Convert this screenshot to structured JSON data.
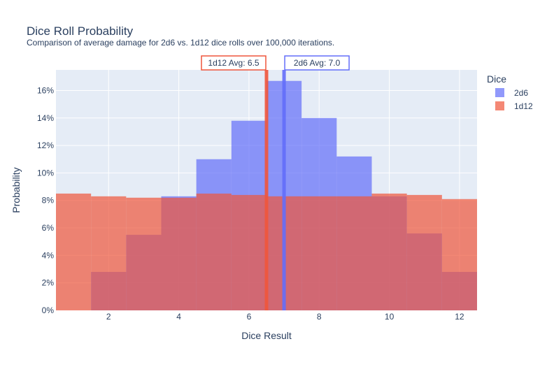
{
  "chart_data": {
    "type": "bar",
    "title": "Dice Roll Probability",
    "subtitle": "Comparison of average damage for 2d6 vs. 1d12 dice rolls over 100,000 iterations.",
    "xlabel": "Dice Result",
    "ylabel": "Probability",
    "xlim": [
      0.5,
      12.5
    ],
    "ylim": [
      0,
      0.175
    ],
    "x_ticks": [
      2,
      4,
      6,
      8,
      10,
      12
    ],
    "y_ticks": [
      0,
      0.02,
      0.04,
      0.06,
      0.08,
      0.1,
      0.12,
      0.14,
      0.16
    ],
    "y_tick_labels": [
      "0%",
      "2%",
      "4%",
      "6%",
      "8%",
      "10%",
      "12%",
      "14%",
      "16%"
    ],
    "x": [
      1,
      2,
      3,
      4,
      5,
      6,
      7,
      8,
      9,
      10,
      11,
      12
    ],
    "series": [
      {
        "name": "2d6",
        "color": "#636efa",
        "values": [
          0,
          0.028,
          0.055,
          0.083,
          0.11,
          0.138,
          0.167,
          0.14,
          0.112,
          0.083,
          0.056,
          0.028
        ]
      },
      {
        "name": "1d12",
        "color": "#ef553b",
        "values": [
          0.085,
          0.083,
          0.082,
          0.082,
          0.085,
          0.084,
          0.083,
          0.083,
          0.083,
          0.085,
          0.084,
          0.081
        ]
      }
    ],
    "legend_title": "Dice",
    "legend_position": "top-right",
    "vlines": [
      {
        "x": 6.5,
        "label": "1d12 Avg: 6.5",
        "color": "#ef553b"
      },
      {
        "x": 7.0,
        "label": "2d6 Avg: 7.0",
        "color": "#636efa"
      }
    ],
    "background": "#e5ecf6",
    "grid_color": "#ffffff",
    "text_color": "#2a3f5f"
  }
}
